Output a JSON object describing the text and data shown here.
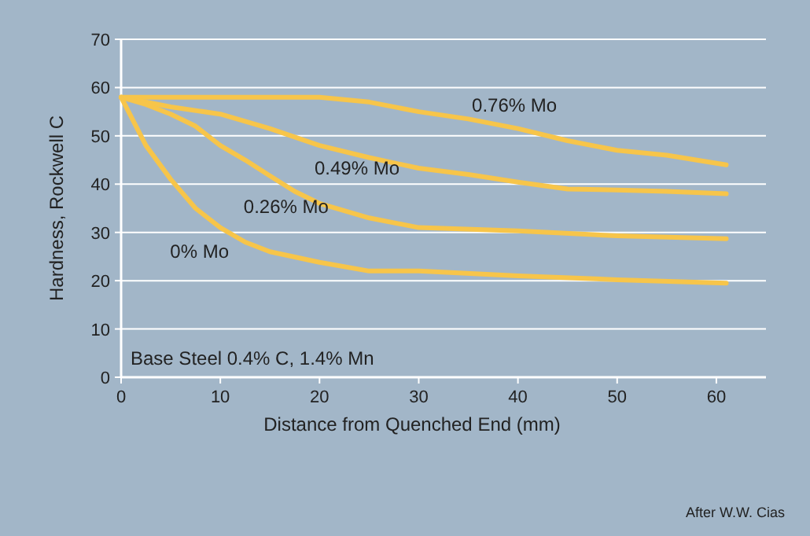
{
  "chart_data": {
    "type": "line",
    "xlabel": "Distance from Quenched End (mm)",
    "ylabel": "Hardness, Rockwell C",
    "xlim": [
      0,
      65
    ],
    "ylim": [
      0,
      70
    ],
    "xticks": [
      0,
      10,
      20,
      30,
      40,
      50,
      60
    ],
    "yticks": [
      0,
      10,
      20,
      30,
      40,
      50,
      60,
      70
    ],
    "grid": "y",
    "marker": "none",
    "line_style": "solid",
    "series": [
      {
        "name": "0.76% Mo",
        "color": "#f7c54a",
        "x": [
          0,
          5,
          10,
          15,
          20,
          25,
          30,
          35,
          40,
          45,
          50,
          55,
          61
        ],
        "values": [
          58,
          58,
          58,
          58,
          58,
          57,
          55,
          53.5,
          51.5,
          49,
          47,
          46,
          44
        ]
      },
      {
        "name": "0.49% Mo",
        "color": "#f7c54a",
        "x": [
          0,
          5,
          10,
          15,
          20,
          25,
          30,
          35,
          40,
          45,
          50,
          55,
          61
        ],
        "values": [
          58,
          56,
          54.5,
          51.5,
          48,
          45.5,
          43.3,
          42,
          40.4,
          39,
          38.8,
          38.5,
          38
        ]
      },
      {
        "name": "0.26% Mo",
        "color": "#f7c54a",
        "x": [
          0,
          2.5,
          5,
          7.5,
          10,
          12.5,
          15,
          17.5,
          20,
          25,
          30,
          40,
          50,
          61
        ],
        "values": [
          58,
          56.5,
          54.5,
          52,
          48,
          45,
          41.7,
          38.5,
          36,
          33,
          31,
          30.3,
          29.3,
          28.7
        ]
      },
      {
        "name": "0% Mo",
        "color": "#f7c54a",
        "x": [
          0,
          2.5,
          5,
          7.5,
          10,
          12.5,
          15,
          20,
          25,
          30,
          40,
          50,
          61
        ],
        "values": [
          58,
          48,
          41,
          35,
          31,
          28,
          26,
          23.8,
          22,
          22,
          21,
          20.2,
          19.5
        ]
      }
    ],
    "annotations": [
      "Base Steel 0.4% C, 1.4% Mn",
      "After W.W. Cias"
    ]
  }
}
